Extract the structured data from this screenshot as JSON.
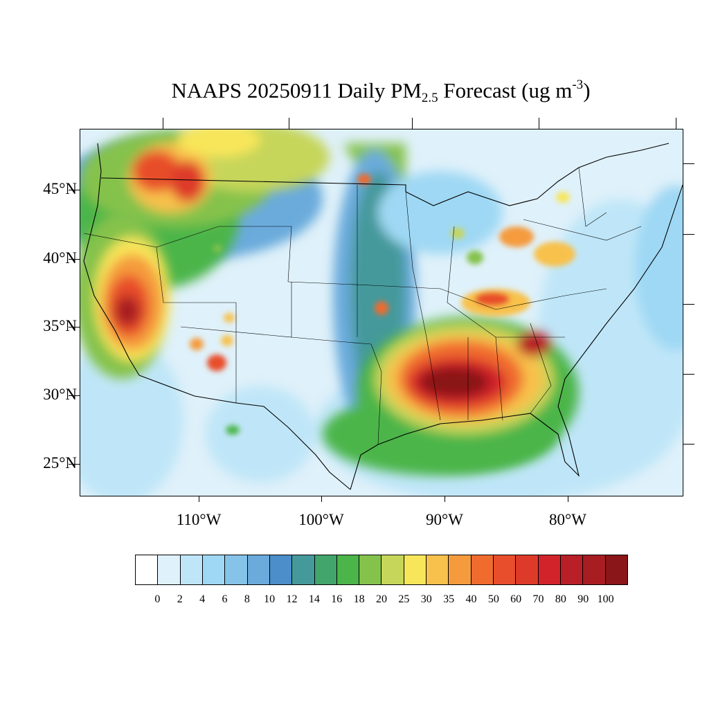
{
  "title": {
    "main": "NAAPS 20250911 Daily PM",
    "subscript": "2.5",
    "rest": " Forecast (ug m",
    "superscript": "-3",
    "close": ")"
  },
  "axes": {
    "lat_labels": [
      "45°N",
      "40°N",
      "35°N",
      "30°N",
      "25°N"
    ],
    "lon_labels": [
      "110°W",
      "100°W",
      "90°W",
      "80°W"
    ]
  },
  "colorbar": {
    "colors": [
      "#ffffff",
      "#dff1fa",
      "#bfe6f8",
      "#9fd8f4",
      "#86c3e8",
      "#6aabdc",
      "#4b8ec9",
      "#45999b",
      "#42a56c",
      "#4bb54a",
      "#85c24c",
      "#c6d65a",
      "#f8e65a",
      "#f8c14c",
      "#f59b3e",
      "#f06b2e",
      "#e84e2c",
      "#de3a29",
      "#d2232a",
      "#b81f26",
      "#a71d22",
      "#8a1619"
    ],
    "labels": [
      "0",
      "2",
      "4",
      "6",
      "8",
      "10",
      "12",
      "14",
      "16",
      "18",
      "20",
      "25",
      "30",
      "35",
      "40",
      "50",
      "60",
      "70",
      "80",
      "90",
      "100"
    ]
  }
}
